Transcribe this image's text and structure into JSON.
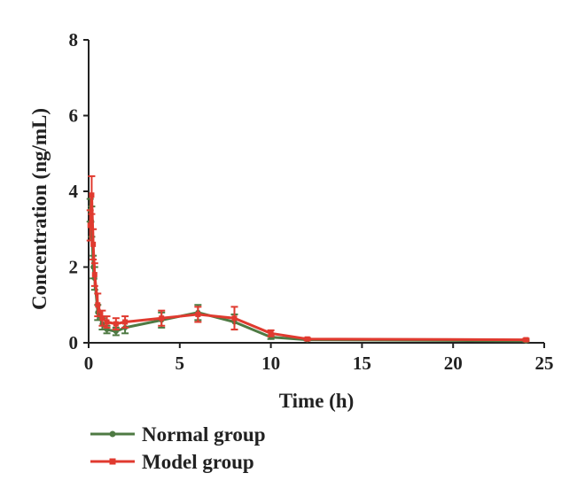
{
  "chart_data": {
    "type": "line",
    "title": "",
    "xlabel": "Time (h)",
    "ylabel": "Concentration (ng/mL)",
    "xlim": [
      0,
      25
    ],
    "ylim": [
      0,
      8
    ],
    "xticks": [
      0,
      5,
      10,
      15,
      20,
      25
    ],
    "yticks": [
      0,
      2,
      4,
      6,
      8
    ],
    "grid": false,
    "legend_position": "bottom-left",
    "series": [
      {
        "name": "Normal group",
        "color": "#4e7a43",
        "marker": "circle",
        "points": [
          {
            "x": 0.083,
            "y": 3.5,
            "err": 0.3
          },
          {
            "x": 0.167,
            "y": 3.2,
            "err": 0.4
          },
          {
            "x": 0.25,
            "y": 2.0,
            "err": 0.3
          },
          {
            "x": 0.33,
            "y": 1.7,
            "err": 0.3
          },
          {
            "x": 0.5,
            "y": 0.8,
            "err": 0.2
          },
          {
            "x": 0.75,
            "y": 0.5,
            "err": 0.15
          },
          {
            "x": 1,
            "y": 0.35,
            "err": 0.1
          },
          {
            "x": 1.5,
            "y": 0.3,
            "err": 0.1
          },
          {
            "x": 2,
            "y": 0.4,
            "err": 0.15
          },
          {
            "x": 4,
            "y": 0.6,
            "err": 0.2
          },
          {
            "x": 6,
            "y": 0.8,
            "err": 0.2
          },
          {
            "x": 8,
            "y": 0.55,
            "err": 0.2
          },
          {
            "x": 10,
            "y": 0.15,
            "err": 0.05
          },
          {
            "x": 12,
            "y": 0.08,
            "err": 0.02
          },
          {
            "x": 24,
            "y": 0.05,
            "err": 0.02
          }
        ]
      },
      {
        "name": "Model group",
        "color": "#e03a2f",
        "marker": "square",
        "points": [
          {
            "x": 0.083,
            "y": 3.1,
            "err": 0.4
          },
          {
            "x": 0.167,
            "y": 3.9,
            "err": 0.5
          },
          {
            "x": 0.25,
            "y": 2.6,
            "err": 0.4
          },
          {
            "x": 0.33,
            "y": 1.8,
            "err": 0.3
          },
          {
            "x": 0.5,
            "y": 1.0,
            "err": 0.3
          },
          {
            "x": 0.75,
            "y": 0.65,
            "err": 0.2
          },
          {
            "x": 1,
            "y": 0.55,
            "err": 0.15
          },
          {
            "x": 1.5,
            "y": 0.5,
            "err": 0.15
          },
          {
            "x": 2,
            "y": 0.55,
            "err": 0.15
          },
          {
            "x": 4,
            "y": 0.65,
            "err": 0.2
          },
          {
            "x": 6,
            "y": 0.75,
            "err": 0.2
          },
          {
            "x": 8,
            "y": 0.65,
            "err": 0.3
          },
          {
            "x": 10,
            "y": 0.25,
            "err": 0.08
          },
          {
            "x": 12,
            "y": 0.1,
            "err": 0.03
          },
          {
            "x": 24,
            "y": 0.08,
            "err": 0.03
          }
        ]
      }
    ]
  }
}
